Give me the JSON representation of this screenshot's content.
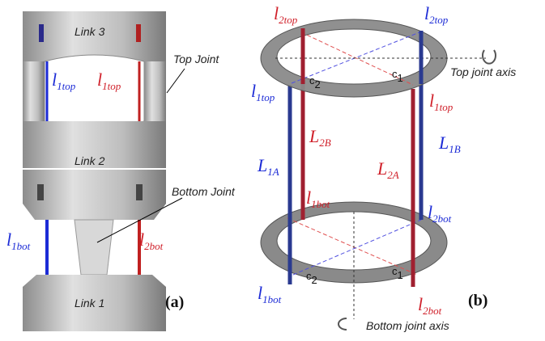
{
  "panel_a": {
    "labels": [
      {
        "text": "Link 3"
      },
      {
        "text": "Top Joint"
      },
      {
        "main": "l",
        "sub": "1top"
      },
      {
        "main": "l",
        "sub": "1top"
      },
      {
        "text": "Link 2"
      },
      {
        "text": "Bottom Joint"
      },
      {
        "main": "l",
        "sub": "1bot"
      },
      {
        "main": "l",
        "sub": "2bot"
      },
      {
        "text": "Link 1"
      },
      {
        "text": "(a)"
      }
    ]
  },
  "panel_b": {
    "labels": [
      {
        "main": "l",
        "sub": "2top"
      },
      {
        "main": "l",
        "sub": "2top"
      },
      {
        "main": "c",
        "sub": "2"
      },
      {
        "main": "c",
        "sub": "1"
      },
      {
        "text": "Top joint axis"
      },
      {
        "main": "l",
        "sub": "1top"
      },
      {
        "main": "l",
        "sub": "1top"
      },
      {
        "main": "L",
        "sub": "2B"
      },
      {
        "main": "L",
        "sub": "1B"
      },
      {
        "main": "L",
        "sub": "1A"
      },
      {
        "main": "L",
        "sub": "2A"
      },
      {
        "main": "l",
        "sub": "1bot"
      },
      {
        "main": "l",
        "sub": "2bot"
      },
      {
        "main": "c",
        "sub": "2"
      },
      {
        "main": "c",
        "sub": "1"
      },
      {
        "main": "l",
        "sub": "1bot"
      },
      {
        "main": "l",
        "sub": "2bot"
      },
      {
        "text": "(b)"
      },
      {
        "text": "Bottom joint axis"
      }
    ]
  }
}
